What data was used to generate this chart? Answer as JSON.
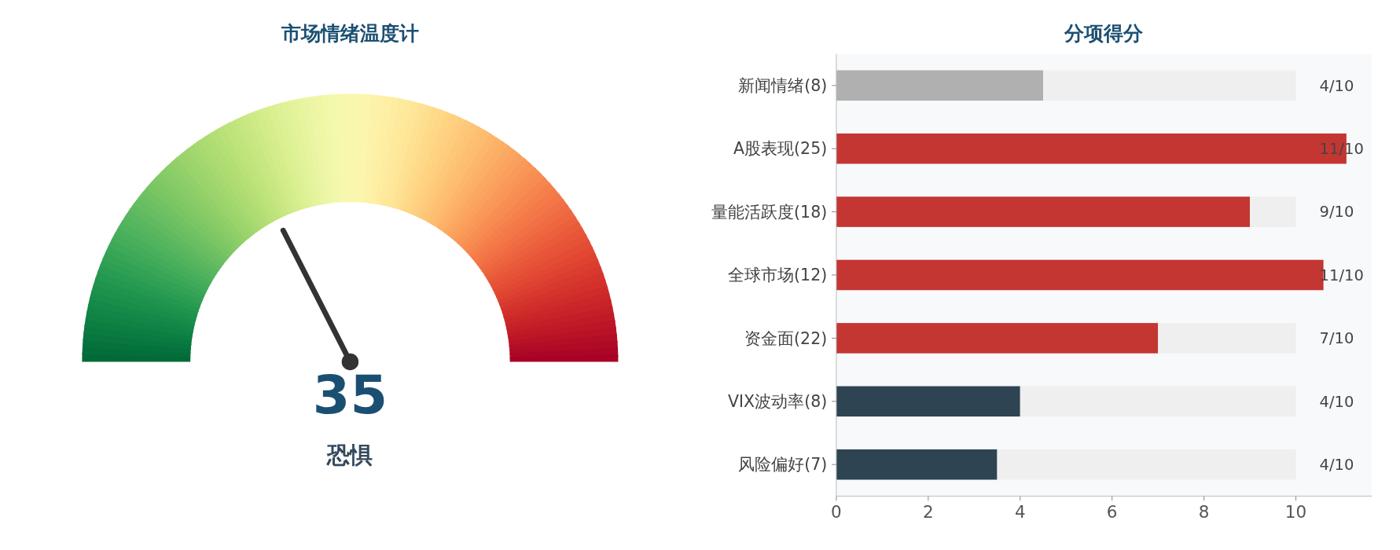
{
  "chart_data": [
    {
      "type": "other",
      "title": "市场情绪温度计",
      "values": [
        35
      ],
      "value_labels": [
        "35"
      ],
      "annotations": [
        "恐惧"
      ]
    },
    {
      "type": "bar",
      "title": "分项得分",
      "orientation": "horizontal",
      "stacked": true,
      "categories": [
        "新闻情绪(8)",
        "A股表现(25)",
        "量能活跃度(18)",
        "全球市场(12)",
        "资金面(22)",
        "VIX波动率(8)",
        "风险偏好(7)"
      ],
      "series": [
        {
          "colors": [
            "#b0b0b0",
            "#c43632",
            "#c43632",
            "#c43632",
            "#c43632",
            "#2e4453",
            "#2e4453"
          ],
          "values": [
            4.5,
            11.1,
            9,
            10.6,
            7,
            4,
            3.5
          ]
        },
        {
          "color": "#efefef",
          "values": [
            5.5,
            0,
            1,
            0,
            3,
            6,
            6.5
          ]
        }
      ],
      "annotations": [
        "4/10",
        "11/10",
        "9/10",
        "11/10",
        "7/10",
        "4/10",
        "4/10"
      ],
      "xlim": [
        0,
        11.65
      ],
      "xticks": [
        0,
        2,
        4,
        6,
        8,
        10
      ],
      "grid": false
    }
  ]
}
